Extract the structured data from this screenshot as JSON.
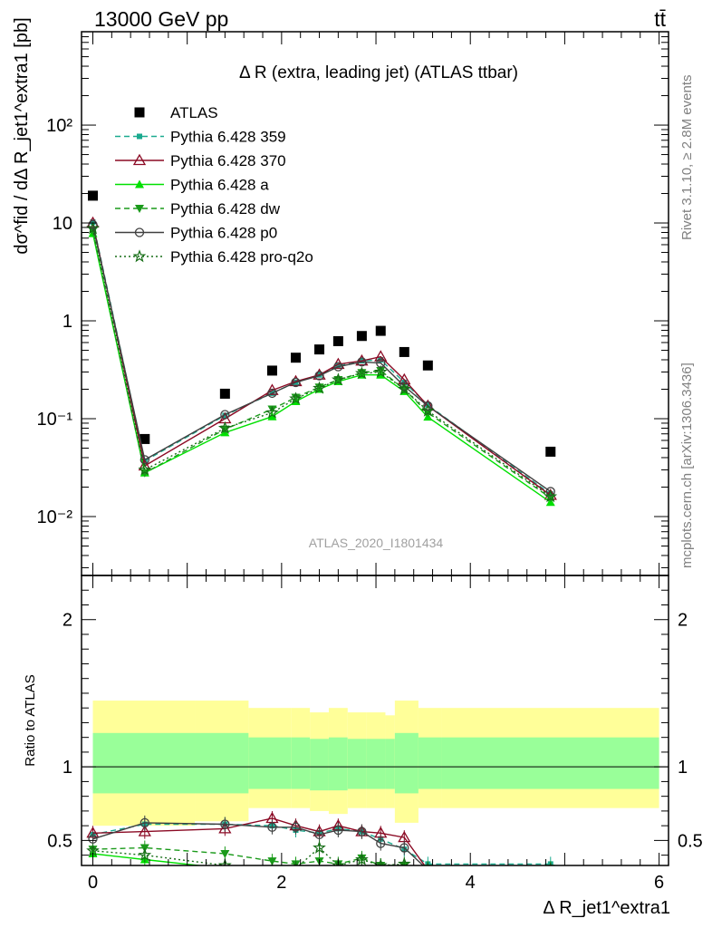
{
  "header": {
    "energy_label": "13000 GeV pp",
    "process_label": "tt̄"
  },
  "side_labels": {
    "rivet": "Rivet 3.1.10, ≥ 2.8M events",
    "mcplots": "mcplots.cern.ch [arXiv:1306.3436]"
  },
  "chart_data": [
    {
      "type": "line",
      "title": "Δ R (extra, leading jet) (ATLAS ttbar)",
      "watermark": "ATLAS_2020_I1801434",
      "ylabel": "dσ^fid / dΔ R_jet1^extra1 [pb]",
      "yscale": "log",
      "ylim": [
        0.0025,
        900
      ],
      "xlim": [
        -0.12,
        6.1
      ],
      "legend_position": "top-left",
      "y_tick_labels": [
        "10^-2",
        "10^-1",
        "1",
        "10",
        "10^2"
      ],
      "x": [
        0.0,
        0.55,
        1.4,
        1.9,
        2.15,
        2.4,
        2.6,
        2.85,
        3.05,
        3.3,
        3.55,
        4.85
      ],
      "series": [
        {
          "name": "ATLAS",
          "color": "#000000",
          "marker": "square",
          "values": [
            19.0,
            0.062,
            0.18,
            0.31,
            0.42,
            0.51,
            0.62,
            0.7,
            0.79,
            0.48,
            0.35,
            0.046
          ]
        },
        {
          "name": "Pythia 6.428 359",
          "color": "#1aaa8f",
          "dash": "dashed",
          "marker": "filled-square",
          "values": [
            10.2,
            0.037,
            0.108,
            0.182,
            0.235,
            0.28,
            0.345,
            0.39,
            0.4,
            0.235,
            0.138,
            0.017
          ]
        },
        {
          "name": "Pythia 6.428 370",
          "color": "#8b0a24",
          "dash": "solid",
          "marker": "open-triangle",
          "values": [
            10.0,
            0.033,
            0.1,
            0.195,
            0.24,
            0.28,
            0.36,
            0.39,
            0.43,
            0.25,
            0.135,
            0.0165
          ]
        },
        {
          "name": "Pythia 6.428 a",
          "color": "#00e000",
          "dash": "solid",
          "marker": "filled-triangle",
          "values": [
            7.8,
            0.028,
            0.072,
            0.105,
            0.15,
            0.2,
            0.24,
            0.28,
            0.28,
            0.19,
            0.104,
            0.014
          ]
        },
        {
          "name": "Pythia 6.428 dw",
          "color": "#1a9a1a",
          "dash": "dashed",
          "marker": "filled-triangle-down",
          "values": [
            8.3,
            0.028,
            0.078,
            0.125,
            0.165,
            0.21,
            0.25,
            0.295,
            0.31,
            0.2,
            0.115,
            0.0155
          ]
        },
        {
          "name": "Pythia 6.428 p0",
          "color": "#404040",
          "dash": "solid",
          "marker": "open-circle",
          "values": [
            9.6,
            0.038,
            0.11,
            0.182,
            0.235,
            0.275,
            0.34,
            0.38,
            0.37,
            0.215,
            0.135,
            0.018
          ]
        },
        {
          "name": "Pythia 6.428 pro-q2o",
          "color": "#166d16",
          "dash": "dotted",
          "marker": "open-star",
          "values": [
            8.8,
            0.03,
            0.08,
            0.115,
            0.16,
            0.205,
            0.25,
            0.29,
            0.3,
            0.2,
            0.12,
            0.016
          ]
        }
      ]
    },
    {
      "type": "line",
      "ylabel": "Ratio to ATLAS",
      "xlabel": "Δ R_jet1^extra1",
      "ylim": [
        0.33,
        2.3
      ],
      "xlim": [
        -0.12,
        6.1
      ],
      "x_tick_labels": [
        "0",
        "2",
        "4",
        "6"
      ],
      "y_tick_labels": [
        "0.5",
        "1",
        "2"
      ],
      "bin_edges": [
        0.0,
        1.08,
        1.65,
        2.1,
        2.3,
        2.5,
        2.7,
        2.9,
        3.1,
        3.2,
        3.45,
        3.7,
        6.0
      ],
      "band_outer_low": [
        0.6,
        0.63,
        0.72,
        0.72,
        0.7,
        0.68,
        0.72,
        0.72,
        0.72,
        0.62,
        0.72,
        0.72
      ],
      "band_outer_high": [
        1.45,
        1.45,
        1.4,
        1.4,
        1.37,
        1.4,
        1.37,
        1.37,
        1.35,
        1.45,
        1.4,
        1.4
      ],
      "band_inner_low": [
        0.82,
        0.82,
        0.85,
        0.85,
        0.84,
        0.84,
        0.85,
        0.85,
        0.85,
        0.82,
        0.85,
        0.85
      ],
      "band_inner_high": [
        1.23,
        1.23,
        1.2,
        1.2,
        1.19,
        1.2,
        1.19,
        1.19,
        1.19,
        1.23,
        1.2,
        1.2
      ],
      "band_outer_color": "#ffff99",
      "band_inner_color": "#99ff99",
      "reference_line": 1.0,
      "x": [
        0.0,
        0.55,
        1.4,
        1.9,
        2.15,
        2.4,
        2.6,
        2.85,
        3.05,
        3.3,
        3.55,
        4.85
      ],
      "series": [
        {
          "name": "Pythia 6.428 359",
          "values": [
            0.54,
            0.61,
            0.61,
            0.6,
            0.57,
            0.55,
            0.58,
            0.56,
            0.51,
            0.44,
            0.34,
            0.34
          ]
        },
        {
          "name": "Pythia 6.428 370",
          "values": [
            0.55,
            0.56,
            0.58,
            0.65,
            0.6,
            0.56,
            0.6,
            0.56,
            0.55,
            0.52,
            0.3,
            0.3
          ]
        },
        {
          "name": "Pythia 6.428 a",
          "values": [
            0.41,
            0.37,
            0.31,
            0.28,
            0.25,
            0.25,
            0.25,
            0.25,
            0.25,
            0.25,
            0.25,
            0.25
          ]
        },
        {
          "name": "Pythia 6.428 dw",
          "values": [
            0.44,
            0.45,
            0.41,
            0.36,
            0.34,
            0.36,
            0.34,
            0.38,
            0.33,
            0.33,
            0.31,
            0.31
          ]
        },
        {
          "name": "Pythia 6.428 p0",
          "values": [
            0.51,
            0.62,
            0.61,
            0.59,
            0.59,
            0.54,
            0.57,
            0.56,
            0.48,
            0.45,
            0.3,
            0.3
          ]
        },
        {
          "name": "Pythia 6.428 pro-q2o",
          "values": [
            0.43,
            0.4,
            0.33,
            0.3,
            0.31,
            0.45,
            0.33,
            0.37,
            0.33,
            0.34,
            0.3,
            0.3
          ]
        }
      ]
    }
  ]
}
